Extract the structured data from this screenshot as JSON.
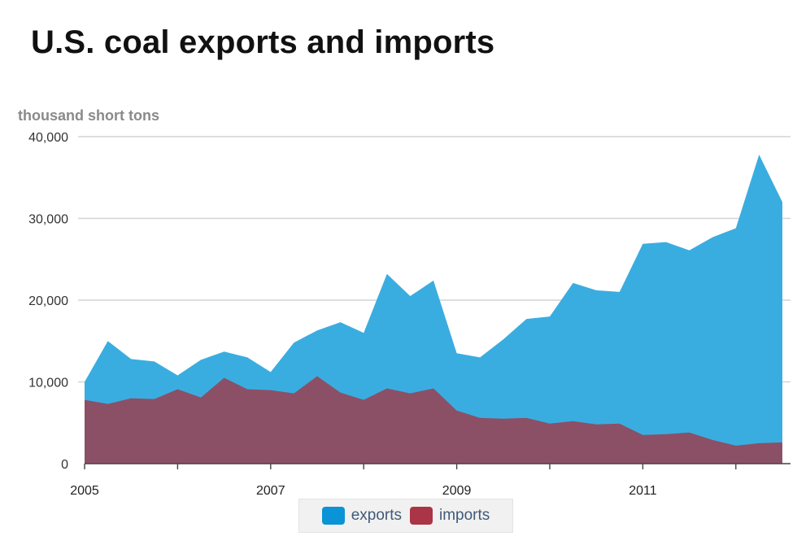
{
  "chart_data": {
    "type": "area",
    "title": "U.S. coal exports and imports",
    "ylabel": "thousand short tons",
    "xlabel": "",
    "ylim": [
      0,
      40000
    ],
    "yticks": [
      0,
      10000,
      20000,
      30000,
      40000
    ],
    "ytick_labels": [
      "0",
      "10,000",
      "20,000",
      "30,000",
      "40,000"
    ],
    "xlim": [
      2005,
      2012.5
    ],
    "xticks": [
      2005,
      2006,
      2007,
      2008,
      2009,
      2010,
      2011,
      2012
    ],
    "xtick_labels": [
      "2005",
      "2007",
      "2009",
      "2011"
    ],
    "x_label_years": [
      2005,
      2007,
      2009,
      2011
    ],
    "grid": true,
    "legend": "bottom",
    "x": [
      2005.0,
      2005.25,
      2005.5,
      2005.75,
      2006.0,
      2006.25,
      2006.5,
      2006.75,
      2007.0,
      2007.25,
      2007.5,
      2007.75,
      2008.0,
      2008.25,
      2008.5,
      2008.75,
      2009.0,
      2009.25,
      2009.5,
      2009.75,
      2010.0,
      2010.25,
      2010.5,
      2010.75,
      2011.0,
      2011.25,
      2011.5,
      2011.75,
      2012.0,
      2012.25,
      2012.5
    ],
    "series": [
      {
        "name": "exports",
        "color": "#3aade0",
        "values": [
          10000,
          15000,
          12800,
          12500,
          10800,
          12700,
          13700,
          13000,
          11200,
          14800,
          16300,
          17300,
          16000,
          23200,
          20500,
          22400,
          13500,
          13000,
          15200,
          17700,
          18000,
          22100,
          21200,
          21000,
          26900,
          27100,
          26100,
          27700,
          28800,
          37800,
          32000
        ]
      },
      {
        "name": "imports",
        "color": "#8b5066",
        "values": [
          7800,
          7300,
          8000,
          7900,
          9100,
          8100,
          10500,
          9100,
          9000,
          8600,
          10700,
          8700,
          7800,
          9200,
          8600,
          9200,
          6500,
          5600,
          5500,
          5600,
          4900,
          5200,
          4800,
          4900,
          3500,
          3600,
          3800,
          2900,
          2200,
          2500,
          2600
        ]
      }
    ]
  },
  "legend_colors": {
    "exports": "#0a93d6",
    "imports": "#a93546"
  }
}
